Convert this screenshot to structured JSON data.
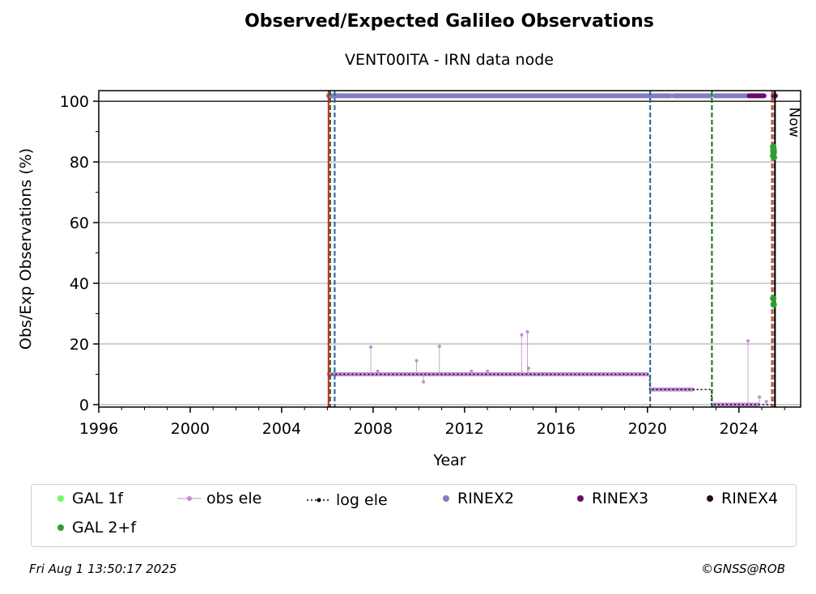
{
  "header": {
    "title": "Observed/Expected Galileo Observations",
    "subtitle": "VENT00ITA - IRN data node"
  },
  "footer": {
    "timestamp": "Fri Aug  1 13:50:17 2025",
    "copyright": "©GNSS@ROB"
  },
  "chart_data": {
    "type": "scatter",
    "title": "Observed/Expected Galileo Observations",
    "subtitle": "VENT00ITA - IRN data node",
    "xlabel": "Year",
    "ylabel": "Obs/Exp Observations (%)",
    "xlim": [
      1996,
      2026.7
    ],
    "ylim": [
      -0.8,
      103.5
    ],
    "x_ticks": [
      1996,
      2000,
      2004,
      2008,
      2012,
      2016,
      2020,
      2024
    ],
    "y_ticks": [
      0,
      20,
      40,
      60,
      80,
      100
    ],
    "grid": "horizontal",
    "now_label": "Now",
    "now_year": 2025.58,
    "reference_line_y": 100,
    "colors": {
      "gal_1f": "#66ff66",
      "gal_2f": "#2ca02c",
      "obs_ele": "#c48bd4",
      "log_ele": "#000000",
      "rinex2": "#8080c0",
      "rinex3": "#6b0a6b",
      "rinex4": "#2a0a20",
      "vline_red": "#e8191c",
      "vline_green": "#007a00",
      "vline_blue": "#1f5fa8"
    },
    "vertical_lines": [
      {
        "x": 2006.05,
        "style": "solid",
        "color": "vline_red"
      },
      {
        "x": 2006.12,
        "style": "dashed",
        "color": "vline_green"
      },
      {
        "x": 2006.32,
        "style": "dashed",
        "color": "vline_blue"
      },
      {
        "x": 2020.12,
        "style": "dashed",
        "color": "vline_blue"
      },
      {
        "x": 2022.82,
        "style": "dashed",
        "color": "vline_green"
      },
      {
        "x": 2025.45,
        "style": "dashed",
        "color": "vline_red"
      },
      {
        "x": 2025.55,
        "style": "dashed",
        "color": "vline_green"
      },
      {
        "x": 2025.58,
        "style": "solid",
        "color": "log_ele"
      }
    ],
    "series": [
      {
        "name": "log ele",
        "style": "dotted-step",
        "points": [
          [
            2006.0,
            10
          ],
          [
            2020.1,
            10
          ],
          [
            2020.1,
            5
          ],
          [
            2022.8,
            5
          ],
          [
            2022.8,
            0
          ],
          [
            2025.55,
            0
          ]
        ]
      },
      {
        "name": "obs ele",
        "style": "stem",
        "points": [
          [
            2006.1,
            10
          ],
          [
            2007.9,
            19
          ],
          [
            2008.2,
            11
          ],
          [
            2009.9,
            14.5
          ],
          [
            2010.2,
            7.5
          ],
          [
            2010.9,
            19.2
          ],
          [
            2012.3,
            11
          ],
          [
            2013.0,
            11
          ],
          [
            2014.5,
            23
          ],
          [
            2014.75,
            24
          ],
          [
            2014.8,
            12
          ],
          [
            2019.9,
            10
          ],
          [
            2020.3,
            5
          ],
          [
            2022.0,
            5
          ],
          [
            2023.5,
            0
          ],
          [
            2024.4,
            21
          ],
          [
            2024.9,
            2.5
          ],
          [
            2025.2,
            1
          ]
        ],
        "bands": [
          {
            "x0": 2006.0,
            "x1": 2020.05,
            "y": 10
          },
          {
            "x0": 2020.15,
            "x1": 2022.0,
            "y": 5
          },
          {
            "x0": 2022.85,
            "x1": 2024.9,
            "y": 0
          }
        ]
      },
      {
        "name": "RINEX2",
        "style": "band",
        "segments": [
          [
            2006.05,
            2021.0
          ],
          [
            2021.15,
            2022.75
          ],
          [
            2022.95,
            2024.4
          ]
        ],
        "y": 101.8
      },
      {
        "name": "RINEX3",
        "style": "band",
        "segments": [
          [
            2024.45,
            2025.1
          ],
          [
            2025.5,
            2025.6
          ]
        ],
        "y": 101.8
      },
      {
        "name": "RINEX4",
        "style": "points",
        "points": []
      },
      {
        "name": "GAL 1f",
        "style": "points",
        "points": []
      },
      {
        "name": "GAL 2+f",
        "style": "points",
        "points": [
          [
            2025.5,
            35
          ],
          [
            2025.52,
            33
          ],
          [
            2025.5,
            85
          ],
          [
            2025.52,
            84
          ],
          [
            2025.52,
            83
          ],
          [
            2025.5,
            82
          ],
          [
            2025.53,
            81.5
          ],
          [
            2025.51,
            83.5
          ]
        ]
      }
    ]
  },
  "legend": [
    {
      "label": "GAL 1f",
      "symbol": "dot",
      "color": "#66ff66"
    },
    {
      "label": "obs ele",
      "symbol": "line-dot",
      "color": "#c48bd4"
    },
    {
      "label": "log ele",
      "symbol": "dotted-line",
      "color": "#000000"
    },
    {
      "label": "RINEX2",
      "symbol": "dot",
      "color": "#8080c0"
    },
    {
      "label": "RINEX3",
      "symbol": "dot",
      "color": "#6b0a6b"
    },
    {
      "label": "RINEX4",
      "symbol": "dot",
      "color": "#2a0a20"
    },
    {
      "label": "GAL 2+f",
      "symbol": "dot",
      "color": "#2ca02c"
    }
  ]
}
